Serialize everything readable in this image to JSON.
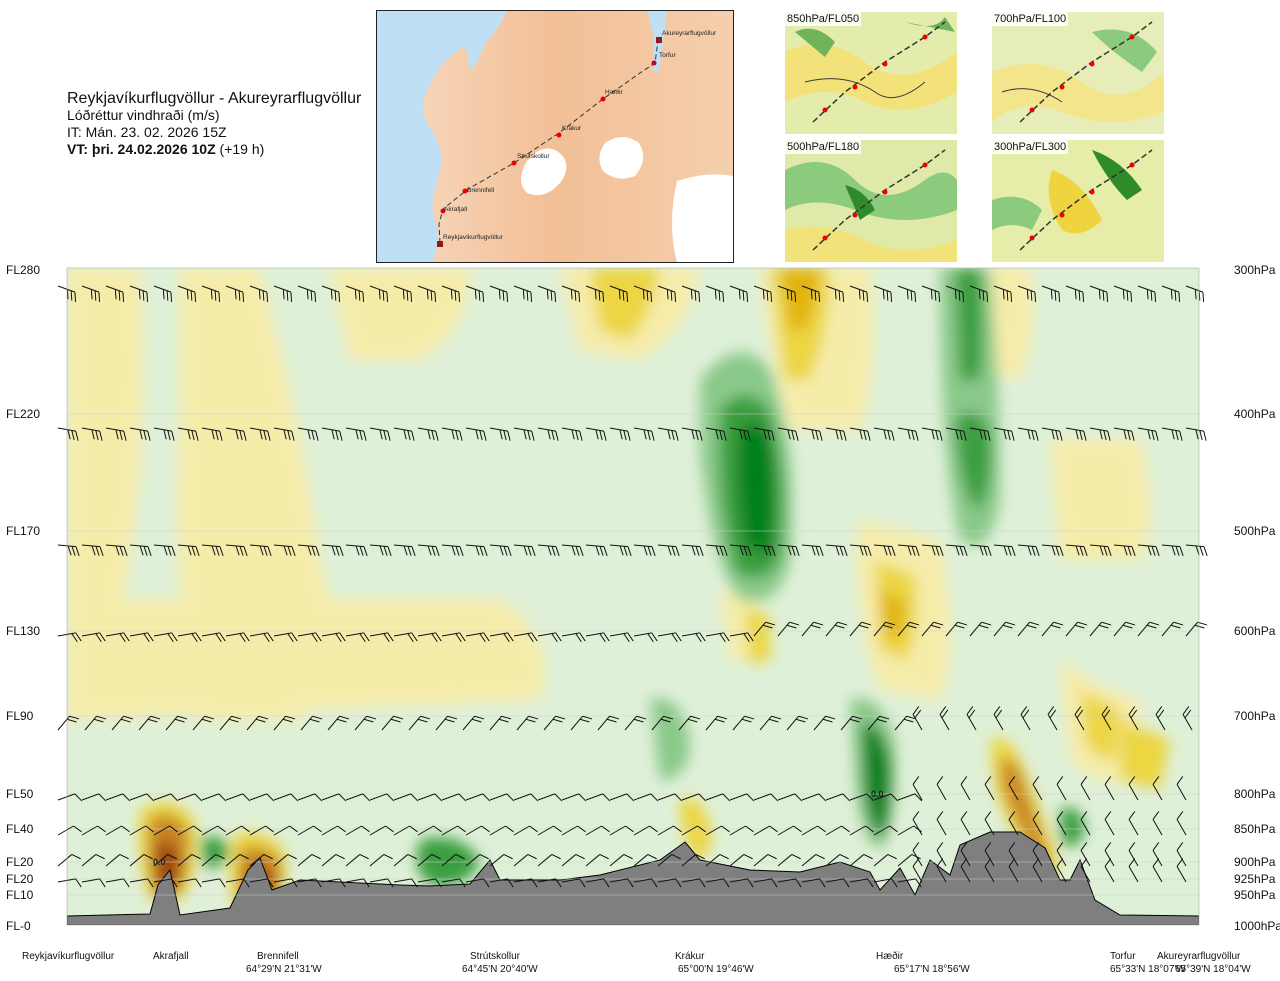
{
  "header": {
    "route_title": "Reykjavíkurflugvöllur - Akureyrarflugvöllur",
    "product": "Lóðréttur vindhraði (m/s)",
    "issue_time": "IT: Mán. 23. 02. 2026 15Z",
    "valid_prefix": "VT:",
    "valid_time": "þri. 24.02.2026 10Z",
    "valid_offset": "(+19 h)"
  },
  "route_map": {
    "waypoints": [
      {
        "name": "Akureyrarflugvöllur"
      },
      {
        "name": "Torfur"
      },
      {
        "name": "Hæðir"
      },
      {
        "name": "Krákur"
      },
      {
        "name": "Strútskollur"
      },
      {
        "name": "Brennifell"
      },
      {
        "name": "Akrafjall"
      },
      {
        "name": "Reykjavíkurflugvöllur"
      }
    ]
  },
  "mini_maps": [
    {
      "label": "850hPa/FL050"
    },
    {
      "label": "700hPa/FL100"
    },
    {
      "label": "500hPa/FL180"
    },
    {
      "label": "300hPa/FL300"
    }
  ],
  "chart_data": {
    "type": "heatmap",
    "title": "Lóðréttur vindhraði (m/s)",
    "y_left_ticks": [
      "FL280",
      "FL220",
      "FL170",
      "FL130",
      "FL90",
      "FL50",
      "FL40",
      "FL20",
      "FL20",
      "FL10",
      "FL-0"
    ],
    "y_right_ticks": [
      "300hPa",
      "400hPa",
      "500hPa",
      "600hPa",
      "700hPa",
      "800hPa",
      "850hPa",
      "900hPa",
      "925hPa",
      "950hPa",
      "1000hPa"
    ],
    "pressure_levels_hpa": [
      300,
      400,
      500,
      600,
      700,
      800,
      850,
      900,
      925,
      950,
      1000
    ],
    "x_waypoints": [
      {
        "name": "Reykjavíkurflugvöllur",
        "coord": ""
      },
      {
        "name": "Akrafjall",
        "coord": ""
      },
      {
        "name": "Brennifell",
        "coord": "64°29'N 21°31'W"
      },
      {
        "name": "Strútskollur",
        "coord": "64°45'N 20°40'W"
      },
      {
        "name": "Krákur",
        "coord": "65°00'N 19°46'W"
      },
      {
        "name": "Hæðir",
        "coord": "65°17'N 18°56'W"
      },
      {
        "name": "Torfur",
        "coord": "65°33'N 18°07'W"
      },
      {
        "name": "Akureyrarflugvöllur",
        "coord": "65°39'N 18°04'W"
      }
    ],
    "inline_labels": [
      "0.0",
      "0.0"
    ],
    "colors": {
      "strong_updraft": "#00801a",
      "updraft_mid": "#3a9e40",
      "updraft_weak": "#8ac98a",
      "updraft_light": "#cde8cb",
      "neutral": "#fffde3",
      "downdraft_light": "#f6ecaa",
      "downdraft_mid": "#ecd643",
      "downdraft_strong": "#e1b411",
      "downdraft_stronger": "#c98526",
      "downdraft_max": "#9c4511",
      "terrain": "#7f7f7f"
    }
  }
}
